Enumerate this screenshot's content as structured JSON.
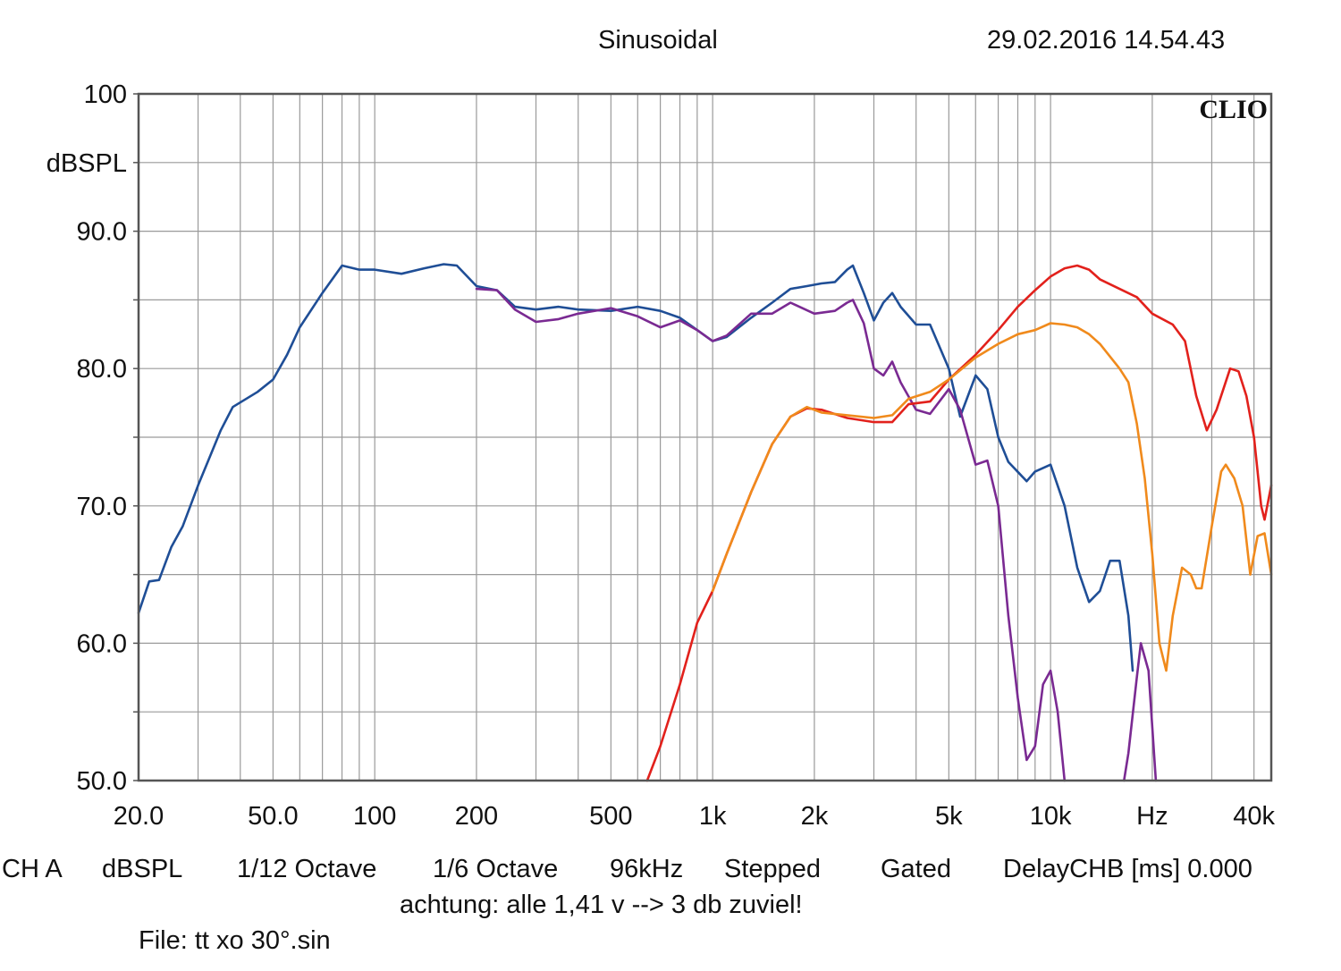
{
  "header": {
    "mode": "Sinusoidal",
    "timestamp": "29.02.2016 14.54.43"
  },
  "brand": "CLIO",
  "footer": {
    "settings": [
      "CH A",
      "dBSPL",
      "1/12 Octave",
      "1/6 Octave",
      "96kHz",
      "Stepped",
      "Gated",
      "DelayCHB [ms] 0.000"
    ],
    "comment": "achtung: alle 1,41 v --> 3 db zuviel!",
    "file": "File: tt xo 30°.sin"
  },
  "colors": {
    "blue": "#1f4e96",
    "purple": "#7a2a92",
    "red": "#e2211c",
    "orange": "#f08a1c",
    "grid": "#9a9a9a",
    "frame": "#555555"
  },
  "chart_data": {
    "type": "line",
    "x_scale": "log",
    "xlim": [
      20,
      45000
    ],
    "ylim": [
      50,
      100
    ],
    "grid": true,
    "ylabel": "dBSPL",
    "xlabel": "Hz",
    "y_ticks": [
      "100",
      "90.0",
      "80.0",
      "70.0",
      "60.0",
      "50.0"
    ],
    "x_ticks": [
      {
        "v": 20,
        "label": "20.0"
      },
      {
        "v": 50,
        "label": "50.0"
      },
      {
        "v": 100,
        "label": "100"
      },
      {
        "v": 200,
        "label": "200"
      },
      {
        "v": 500,
        "label": "500"
      },
      {
        "v": 1000,
        "label": "1k"
      },
      {
        "v": 2000,
        "label": "2k"
      },
      {
        "v": 5000,
        "label": "5k"
      },
      {
        "v": 10000,
        "label": "10k"
      },
      {
        "v": 20000,
        "label": "Hz"
      },
      {
        "v": 40000,
        "label": "40k"
      }
    ],
    "series": [
      {
        "color": "blue",
        "points": [
          [
            20,
            62.2
          ],
          [
            21.5,
            64.5
          ],
          [
            23,
            64.6
          ],
          [
            25,
            67
          ],
          [
            27,
            68.5
          ],
          [
            30,
            71.5
          ],
          [
            35,
            75.5
          ],
          [
            38,
            77.2
          ],
          [
            45,
            78.3
          ],
          [
            50,
            79.2
          ],
          [
            55,
            81
          ],
          [
            60,
            83
          ],
          [
            70,
            85.5
          ],
          [
            80,
            87.5
          ],
          [
            90,
            87.2
          ],
          [
            100,
            87.2
          ],
          [
            120,
            86.9
          ],
          [
            140,
            87.3
          ],
          [
            160,
            87.6
          ],
          [
            175,
            87.5
          ],
          [
            200,
            86
          ],
          [
            230,
            85.7
          ],
          [
            260,
            84.5
          ],
          [
            300,
            84.3
          ],
          [
            350,
            84.5
          ],
          [
            400,
            84.3
          ],
          [
            500,
            84.2
          ],
          [
            600,
            84.5
          ],
          [
            700,
            84.2
          ],
          [
            800,
            83.7
          ],
          [
            900,
            82.8
          ],
          [
            1000,
            82
          ],
          [
            1100,
            82.3
          ],
          [
            1300,
            83.7
          ],
          [
            1500,
            84.8
          ],
          [
            1700,
            85.8
          ],
          [
            1900,
            86
          ],
          [
            2100,
            86.2
          ],
          [
            2300,
            86.3
          ],
          [
            2500,
            87.2
          ],
          [
            2600,
            87.5
          ],
          [
            2800,
            85.5
          ],
          [
            3000,
            83.5
          ],
          [
            3200,
            84.8
          ],
          [
            3400,
            85.5
          ],
          [
            3600,
            84.5
          ],
          [
            4000,
            83.2
          ],
          [
            4400,
            83.2
          ],
          [
            5000,
            80
          ],
          [
            5400,
            76.5
          ],
          [
            6000,
            79.5
          ],
          [
            6500,
            78.5
          ],
          [
            7000,
            75
          ],
          [
            7500,
            73.2
          ],
          [
            8500,
            71.8
          ],
          [
            9000,
            72.5
          ],
          [
            10000,
            73
          ],
          [
            11000,
            70
          ],
          [
            12000,
            65.5
          ],
          [
            13000,
            63
          ],
          [
            14000,
            63.8
          ],
          [
            15000,
            66
          ],
          [
            16000,
            66
          ],
          [
            17000,
            62
          ],
          [
            17500,
            58
          ]
        ]
      },
      {
        "color": "purple",
        "points": [
          [
            200,
            85.8
          ],
          [
            230,
            85.7
          ],
          [
            260,
            84.3
          ],
          [
            300,
            83.4
          ],
          [
            350,
            83.6
          ],
          [
            400,
            84
          ],
          [
            500,
            84.4
          ],
          [
            600,
            83.8
          ],
          [
            700,
            83
          ],
          [
            800,
            83.5
          ],
          [
            900,
            82.8
          ],
          [
            1000,
            82
          ],
          [
            1100,
            82.4
          ],
          [
            1300,
            84
          ],
          [
            1500,
            84
          ],
          [
            1700,
            84.8
          ],
          [
            2000,
            84
          ],
          [
            2300,
            84.2
          ],
          [
            2500,
            84.8
          ],
          [
            2600,
            85
          ],
          [
            2800,
            83.3
          ],
          [
            3000,
            80
          ],
          [
            3200,
            79.5
          ],
          [
            3400,
            80.5
          ],
          [
            3600,
            79
          ],
          [
            4000,
            77
          ],
          [
            4400,
            76.7
          ],
          [
            5000,
            78.5
          ],
          [
            5400,
            77
          ],
          [
            6000,
            73
          ],
          [
            6500,
            73.3
          ],
          [
            7000,
            70
          ],
          [
            7500,
            62
          ],
          [
            8000,
            56
          ],
          [
            8500,
            51.5
          ],
          [
            9000,
            52.5
          ],
          [
            9500,
            57
          ],
          [
            10000,
            58
          ],
          [
            10500,
            55
          ],
          [
            11000,
            50
          ]
        ]
      },
      {
        "color": "purple",
        "points": [
          [
            16500,
            50
          ],
          [
            17000,
            52
          ],
          [
            18000,
            57.5
          ],
          [
            18500,
            60
          ],
          [
            19500,
            58
          ],
          [
            20500,
            50
          ]
        ]
      },
      {
        "color": "red",
        "points": [
          [
            640,
            50
          ],
          [
            700,
            52.5
          ],
          [
            800,
            57
          ],
          [
            900,
            61.5
          ],
          [
            1000,
            63.8
          ],
          [
            1100,
            66.5
          ],
          [
            1300,
            71
          ],
          [
            1500,
            74.5
          ],
          [
            1700,
            76.5
          ],
          [
            1900,
            77.1
          ],
          [
            2100,
            77
          ],
          [
            2500,
            76.4
          ],
          [
            3000,
            76.1
          ],
          [
            3400,
            76.1
          ],
          [
            3800,
            77.4
          ],
          [
            4400,
            77.6
          ],
          [
            5000,
            79.2
          ],
          [
            6000,
            81
          ],
          [
            7000,
            82.8
          ],
          [
            8000,
            84.5
          ],
          [
            9000,
            85.7
          ],
          [
            10000,
            86.7
          ],
          [
            11000,
            87.3
          ],
          [
            12000,
            87.5
          ],
          [
            13000,
            87.2
          ],
          [
            14000,
            86.5
          ],
          [
            16000,
            85.8
          ],
          [
            18000,
            85.2
          ],
          [
            20000,
            84
          ],
          [
            23000,
            83.2
          ],
          [
            25000,
            82
          ],
          [
            27000,
            78
          ],
          [
            29000,
            75.5
          ],
          [
            31000,
            77
          ],
          [
            34000,
            80
          ],
          [
            36000,
            79.8
          ],
          [
            38000,
            78
          ],
          [
            40000,
            75
          ],
          [
            42000,
            70
          ],
          [
            43000,
            69
          ],
          [
            45000,
            71.5
          ]
        ]
      },
      {
        "color": "orange",
        "points": [
          [
            1000,
            63.8
          ],
          [
            1100,
            66.5
          ],
          [
            1300,
            71
          ],
          [
            1500,
            74.5
          ],
          [
            1700,
            76.5
          ],
          [
            1900,
            77.2
          ],
          [
            2100,
            76.8
          ],
          [
            2500,
            76.6
          ],
          [
            3000,
            76.4
          ],
          [
            3400,
            76.6
          ],
          [
            3800,
            77.8
          ],
          [
            4400,
            78.3
          ],
          [
            5000,
            79.2
          ],
          [
            6000,
            80.8
          ],
          [
            7000,
            81.8
          ],
          [
            8000,
            82.5
          ],
          [
            9000,
            82.8
          ],
          [
            10000,
            83.3
          ],
          [
            11000,
            83.2
          ],
          [
            12000,
            83
          ],
          [
            13000,
            82.5
          ],
          [
            14000,
            81.8
          ],
          [
            16000,
            80
          ],
          [
            17000,
            79
          ],
          [
            18000,
            76
          ],
          [
            19000,
            72
          ],
          [
            20000,
            66.5
          ],
          [
            21000,
            60
          ],
          [
            22000,
            58
          ],
          [
            23000,
            62
          ],
          [
            24500,
            65.5
          ],
          [
            26000,
            65
          ],
          [
            27000,
            64
          ],
          [
            28000,
            64
          ],
          [
            30000,
            68.5
          ],
          [
            32000,
            72.5
          ],
          [
            33000,
            73
          ],
          [
            35000,
            72
          ],
          [
            37000,
            70
          ],
          [
            39000,
            65
          ],
          [
            41000,
            67.8
          ],
          [
            43000,
            68
          ],
          [
            45000,
            65
          ]
        ]
      }
    ]
  }
}
